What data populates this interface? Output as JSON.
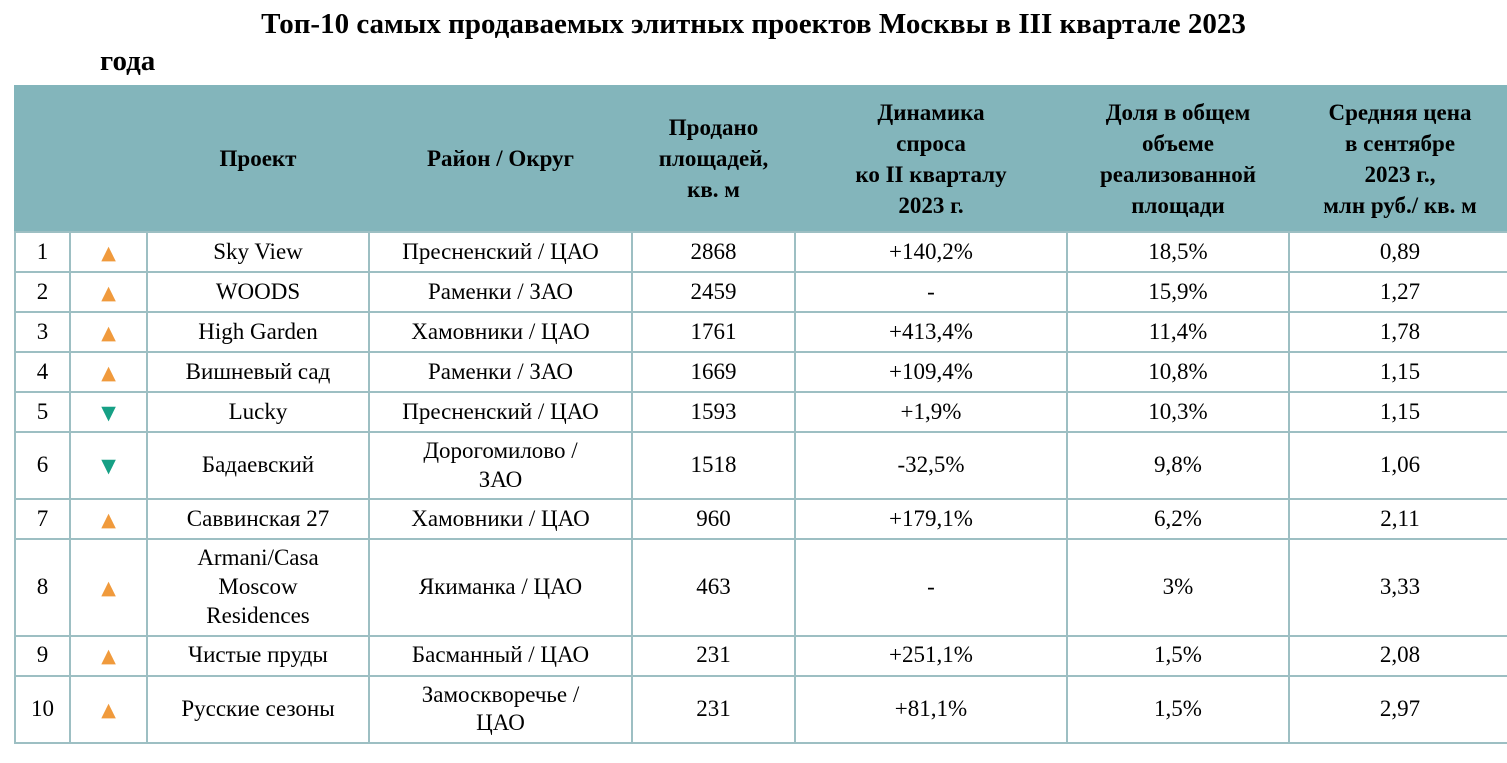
{
  "title": {
    "line1": "Топ-10 самых продаваемых элитных проектов Москвы в III квартале 2023",
    "line2": "года"
  },
  "colors": {
    "header_bg": "#83b5bb",
    "border": "#9dbfc3",
    "up_arrow": "#f09a3c",
    "down_arrow": "#16a085"
  },
  "table": {
    "columns": {
      "num": "",
      "trend": "",
      "project": "Проект",
      "district": "Район / Округ",
      "sold": "Продано\nплощадей,\nкв. м",
      "dynamics": "Динамика\nспроса\nко II кварталу\n2023 г.",
      "share": "Доля в общем\nобъеме\nреализованной\nплощади",
      "price": "Средняя цена\nв сентябре\n2023 г.,\nмлн руб./ кв. м"
    },
    "rows": [
      {
        "num": "1",
        "trend": "up",
        "project": "Sky View",
        "district": "Пресненский / ЦАО",
        "sold": "2868",
        "dynamics": "+140,2%",
        "share": "18,5%",
        "price": "0,89"
      },
      {
        "num": "2",
        "trend": "up",
        "project": "WOODS",
        "district": "Раменки / ЗАО",
        "sold": "2459",
        "dynamics": "-",
        "share": "15,9%",
        "price": "1,27"
      },
      {
        "num": "3",
        "trend": "up",
        "project": "High Garden",
        "district": "Хамовники / ЦАО",
        "sold": "1761",
        "dynamics": "+413,4%",
        "share": "11,4%",
        "price": "1,78"
      },
      {
        "num": "4",
        "trend": "up",
        "project": "Вишневый сад",
        "district": "Раменки / ЗАО",
        "sold": "1669",
        "dynamics": "+109,4%",
        "share": "10,8%",
        "price": "1,15"
      },
      {
        "num": "5",
        "trend": "down",
        "project": "Lucky",
        "district": "Пресненский / ЦАО",
        "sold": "1593",
        "dynamics": "+1,9%",
        "share": "10,3%",
        "price": "1,15"
      },
      {
        "num": "6",
        "trend": "down",
        "project": "Бадаевский",
        "district": "Дорогомилово /\nЗАО",
        "sold": "1518",
        "dynamics": "-32,5%",
        "share": "9,8%",
        "price": "1,06"
      },
      {
        "num": "7",
        "trend": "up",
        "project": "Саввинская 27",
        "district": "Хамовники / ЦАО",
        "sold": "960",
        "dynamics": "+179,1%",
        "share": "6,2%",
        "price": "2,11"
      },
      {
        "num": "8",
        "trend": "up",
        "project": "Armani/Casa\nMoscow\nResidences",
        "district": "Якиманка / ЦАО",
        "sold": "463",
        "dynamics": "-",
        "share": "3%",
        "price": "3,33"
      },
      {
        "num": "9",
        "trend": "up",
        "project": "Чистые пруды",
        "district": "Басманный / ЦАО",
        "sold": "231",
        "dynamics": "+251,1%",
        "share": "1,5%",
        "price": "2,08"
      },
      {
        "num": "10",
        "trend": "up",
        "project": "Русские сезоны",
        "district": "Замоскворечье /\nЦАО",
        "sold": "231",
        "dynamics": "+81,1%",
        "share": "1,5%",
        "price": "2,97"
      }
    ],
    "trend_glyphs": {
      "up": "▲",
      "down": "▼"
    }
  }
}
